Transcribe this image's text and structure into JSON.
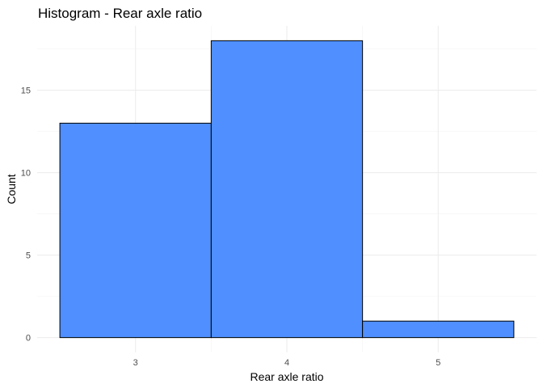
{
  "chart_data": {
    "type": "bar",
    "title": "Histogram - Rear axle ratio",
    "xlabel": "Rear axle ratio",
    "ylabel": "Count",
    "bins": [
      {
        "x": 3,
        "count": 13
      },
      {
        "x": 4,
        "count": 18
      },
      {
        "x": 5,
        "count": 1
      }
    ],
    "bin_width": 1,
    "xlim": [
      2.5,
      5.5
    ],
    "ylim": [
      0,
      18
    ],
    "x_ticks": [
      3,
      4,
      5
    ],
    "y_ticks": [
      0,
      5,
      10,
      15
    ],
    "grid": true,
    "bar_fill": "#4f8fff",
    "bar_outline": "#000000"
  }
}
